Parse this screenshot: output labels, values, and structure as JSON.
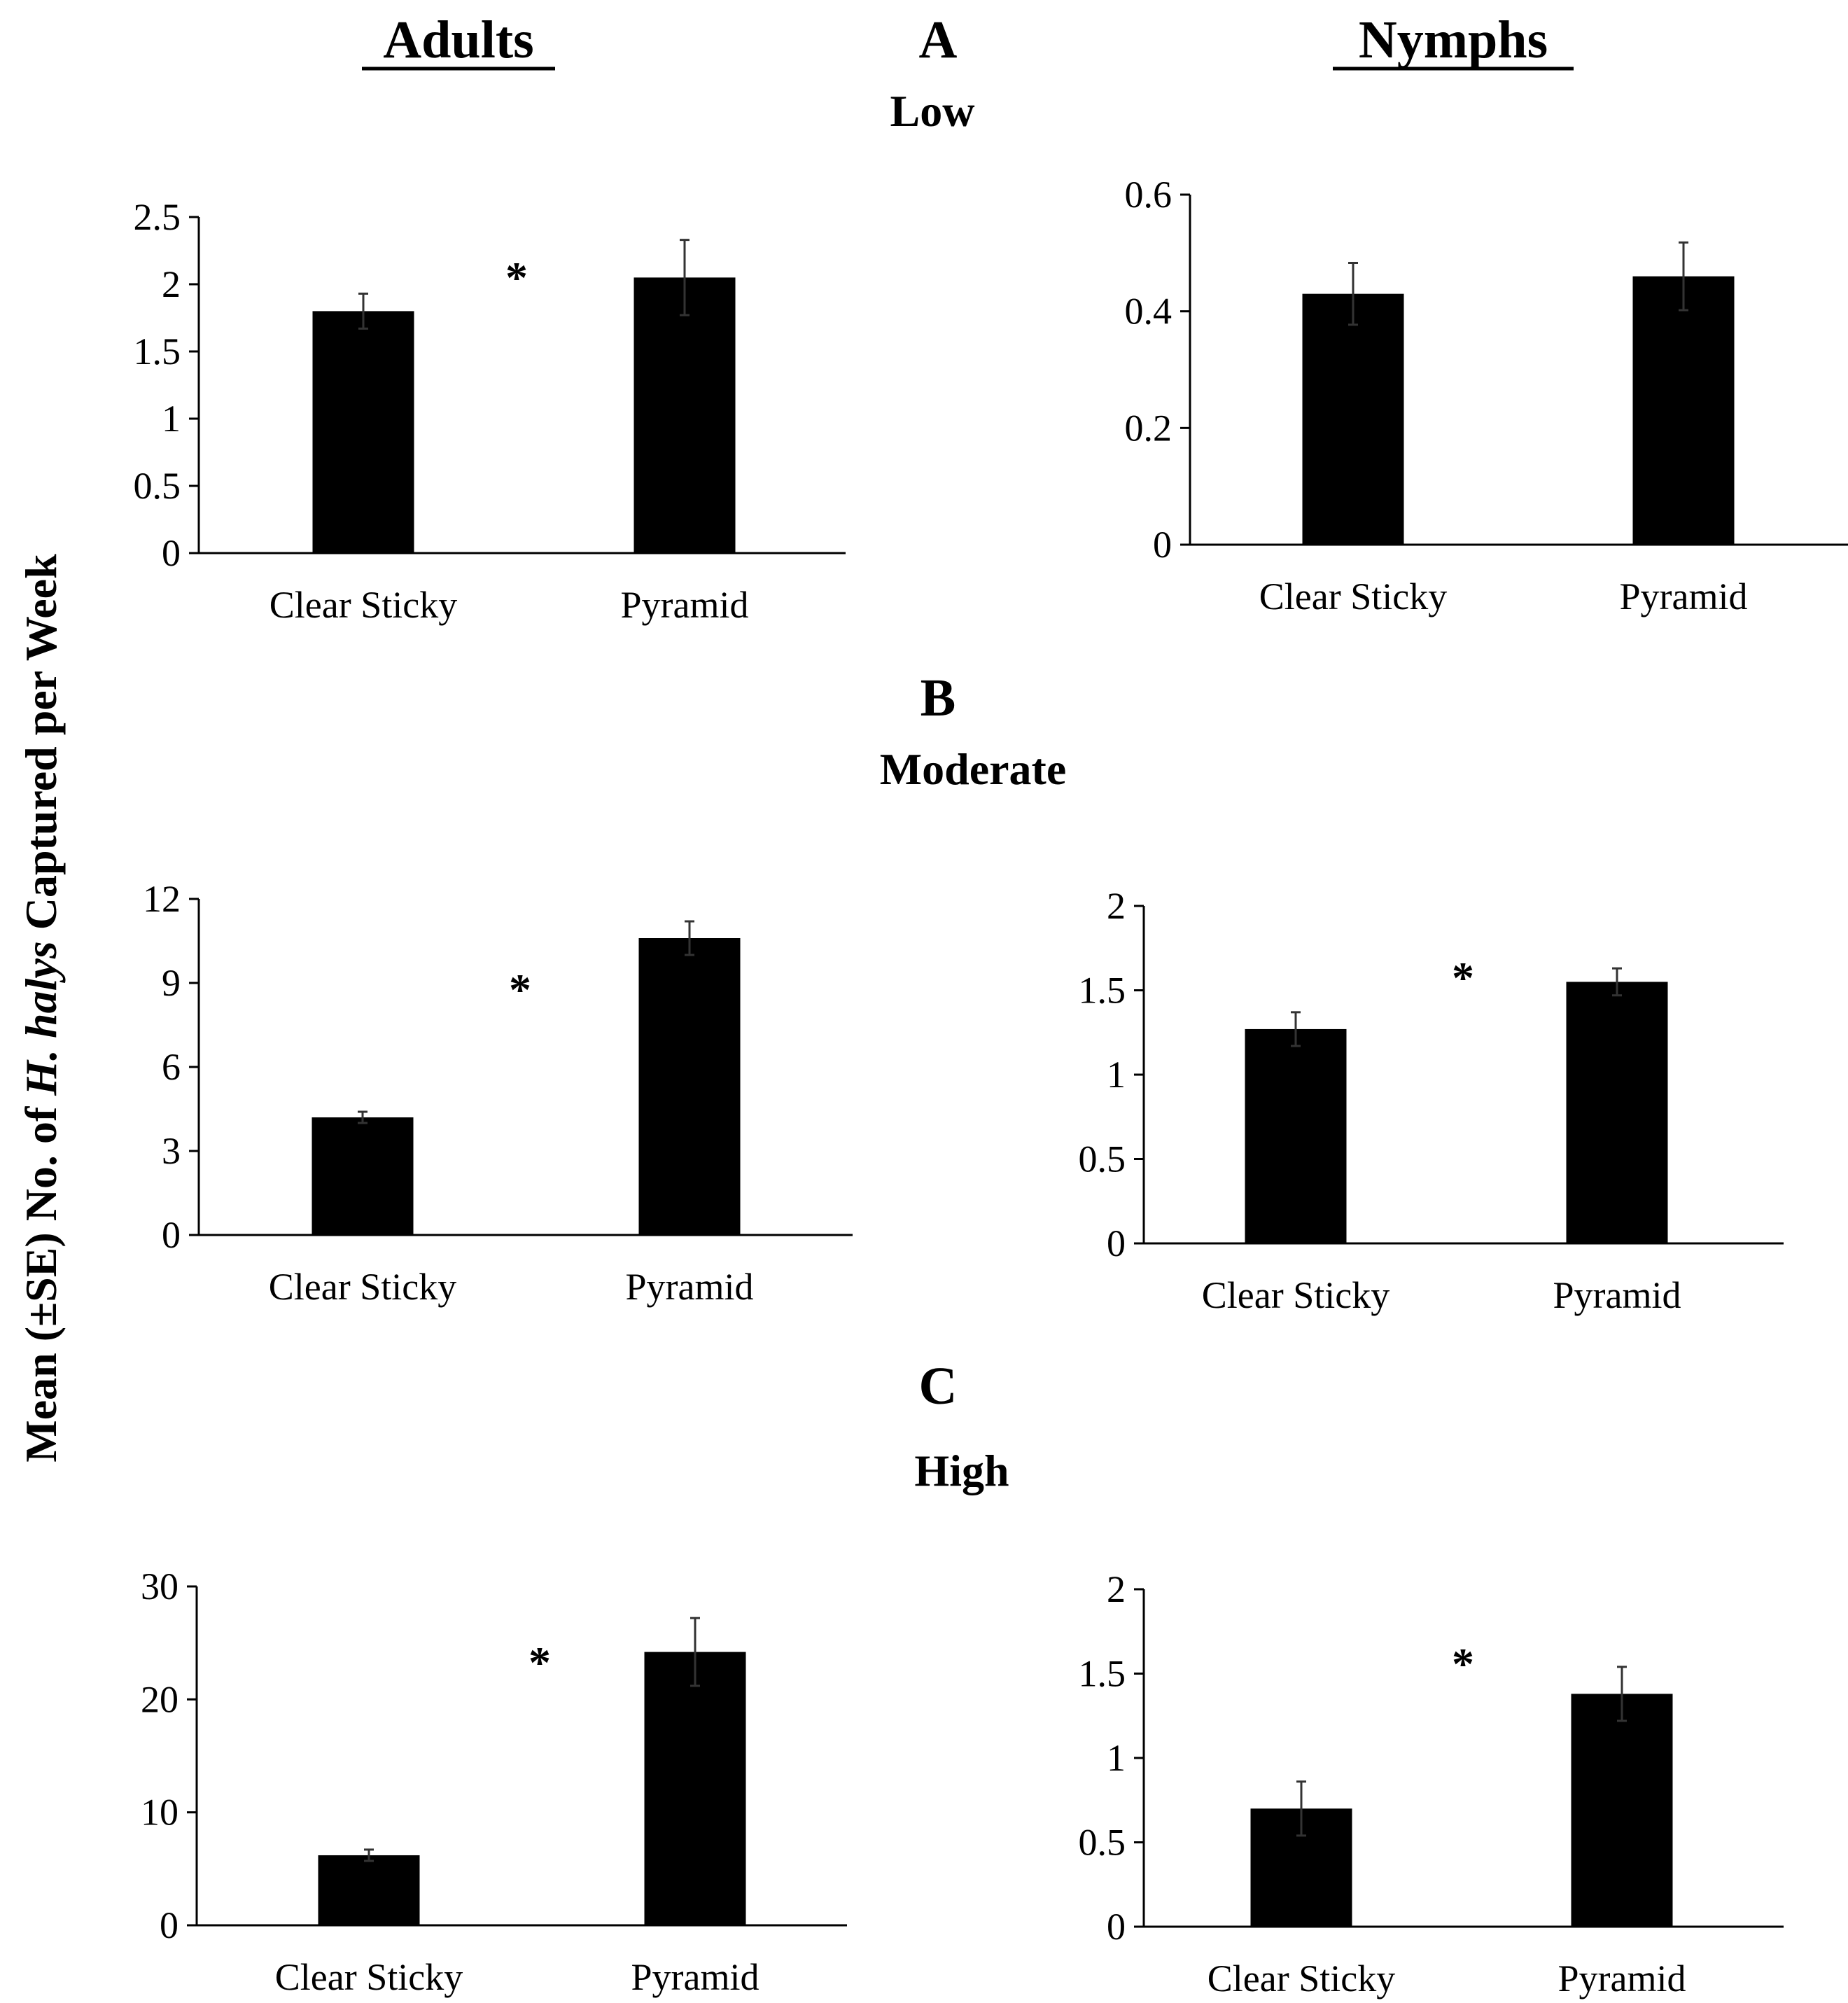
{
  "figure": {
    "column_headers": [
      "Adults",
      "Nymphs"
    ],
    "y_axis_label_parts": [
      "Mean (±SE) No. of ",
      "H. halys",
      " Captured per Week"
    ],
    "colors": {
      "bar": "#000000",
      "axis": "#000000",
      "error_bar": "#333333"
    }
  },
  "rows": [
    {
      "panel_letter": "A",
      "density": "Low"
    },
    {
      "panel_letter": "B",
      "density": "Moderate"
    },
    {
      "panel_letter": "C",
      "density": "High"
    }
  ],
  "chart_data": [
    {
      "type": "bar",
      "panel": "A",
      "density": "Low",
      "stage": "Adults",
      "categories": [
        "Clear Sticky",
        "Pyramid"
      ],
      "values": [
        1.8,
        2.05
      ],
      "errors": [
        0.13,
        0.28
      ],
      "ylim": [
        0,
        2.5
      ],
      "yticks": [
        0,
        0.5,
        1,
        1.5,
        2,
        2.5
      ],
      "ytick_labels": [
        "0",
        "0.5",
        "1",
        "1.5",
        "2",
        "2.5"
      ],
      "significance": "*"
    },
    {
      "type": "bar",
      "panel": "A",
      "density": "Low",
      "stage": "Nymphs",
      "categories": [
        "Clear Sticky",
        "Pyramid"
      ],
      "values": [
        0.43,
        0.46
      ],
      "errors": [
        0.053,
        0.058
      ],
      "ylim": [
        0,
        0.6
      ],
      "yticks": [
        0,
        0.2,
        0.4,
        0.6
      ],
      "ytick_labels": [
        "0",
        "0.2",
        "0.4",
        "0.6"
      ],
      "significance": ""
    },
    {
      "type": "bar",
      "panel": "B",
      "density": "Moderate",
      "stage": "Adults",
      "categories": [
        "Clear Sticky",
        "Pyramid"
      ],
      "values": [
        4.2,
        10.6
      ],
      "errors": [
        0.2,
        0.6
      ],
      "ylim": [
        0,
        12
      ],
      "yticks": [
        0,
        3,
        6,
        9,
        12
      ],
      "ytick_labels": [
        "0",
        "3",
        "6",
        "9",
        "12"
      ],
      "significance": "*"
    },
    {
      "type": "bar",
      "panel": "B",
      "density": "Moderate",
      "stage": "Nymphs",
      "categories": [
        "Clear Sticky",
        "Pyramid"
      ],
      "values": [
        1.27,
        1.55
      ],
      "errors": [
        0.1,
        0.08
      ],
      "ylim": [
        0,
        2
      ],
      "yticks": [
        0,
        0.5,
        1,
        1.5,
        2
      ],
      "ytick_labels": [
        "0",
        "0.5",
        "1",
        "1.5",
        "2"
      ],
      "significance": "*"
    },
    {
      "type": "bar",
      "panel": "C",
      "density": "High",
      "stage": "Adults",
      "categories": [
        "Clear Sticky",
        "Pyramid"
      ],
      "values": [
        6.2,
        24.2
      ],
      "errors": [
        0.5,
        3.0
      ],
      "ylim": [
        0,
        30
      ],
      "yticks": [
        0,
        10,
        20,
        30
      ],
      "ytick_labels": [
        "0",
        "10",
        "20",
        "30"
      ],
      "significance": "*"
    },
    {
      "type": "bar",
      "panel": "C",
      "density": "High",
      "stage": "Nymphs",
      "categories": [
        "Clear Sticky",
        "Pyramid"
      ],
      "values": [
        0.7,
        1.38
      ],
      "errors": [
        0.16,
        0.16
      ],
      "ylim": [
        0,
        2
      ],
      "yticks": [
        0,
        0.5,
        1,
        1.5,
        2
      ],
      "ytick_labels": [
        "0",
        "0.5",
        "1",
        "1.5",
        "2"
      ],
      "significance": "*"
    }
  ]
}
